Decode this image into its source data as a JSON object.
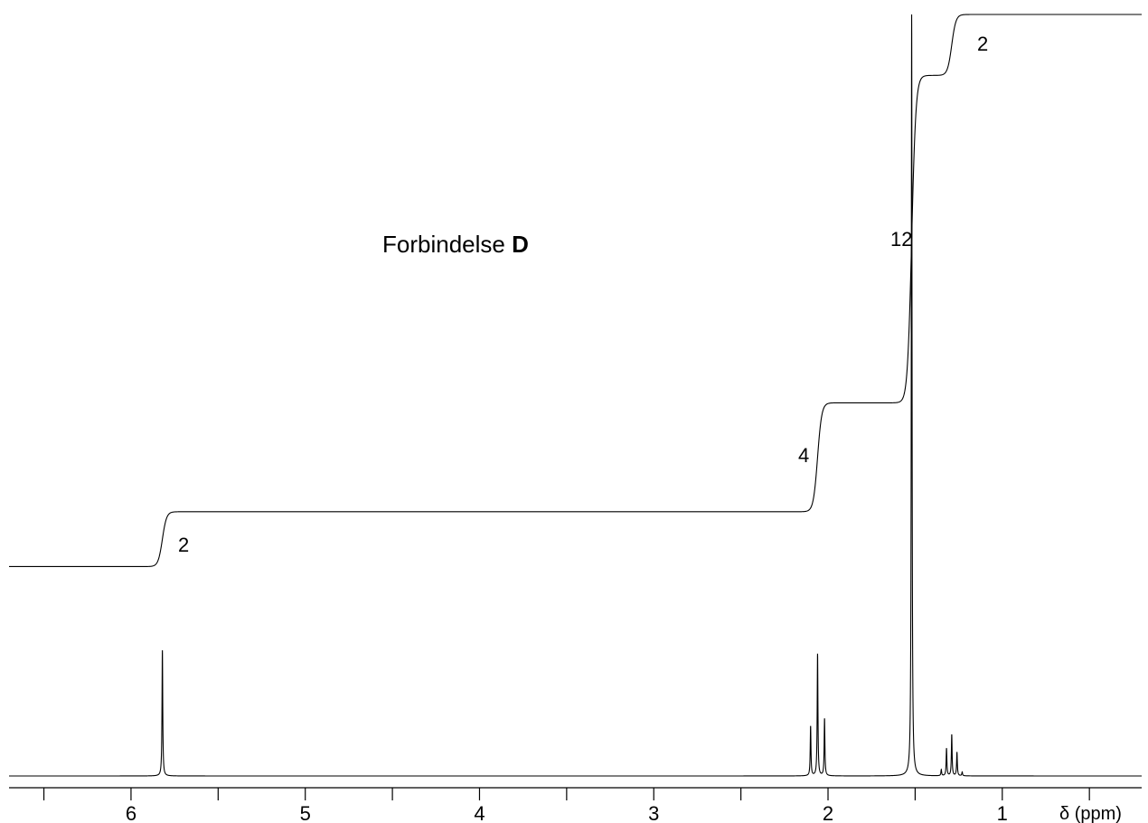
{
  "chart_data": {
    "type": "line",
    "title": "Forbindelse ",
    "title_bold": "D",
    "xlabel": "δ (ppm)",
    "ylabel": "",
    "x_reversed": true,
    "xlim": [
      6.7,
      0.2
    ],
    "major_ticks": [
      6,
      5,
      4,
      3,
      2,
      1
    ],
    "minor_ticks": [
      6.5,
      5.5,
      4.5,
      3.5,
      2.5,
      1.5,
      0.5
    ],
    "tick_labels": [
      "6",
      "5",
      "4",
      "3",
      "2",
      "1"
    ],
    "grid": false,
    "legend": "none",
    "series": [
      {
        "role": "spectrum",
        "peaks": [
          {
            "ppm": 5.82,
            "height": 0.165
          },
          {
            "ppm": 2.1,
            "height": 0.065
          },
          {
            "ppm": 2.06,
            "height": 0.16
          },
          {
            "ppm": 2.02,
            "height": 0.075
          },
          {
            "ppm": 1.52,
            "height": 1.0
          },
          {
            "ppm": 1.35,
            "height": 0.008
          },
          {
            "ppm": 1.32,
            "height": 0.036
          },
          {
            "ppm": 1.29,
            "height": 0.054
          },
          {
            "ppm": 1.26,
            "height": 0.031
          },
          {
            "ppm": 1.23,
            "height": 0.005
          }
        ]
      },
      {
        "role": "integral",
        "segments": [
          {
            "from": 6.7,
            "to": 5.82,
            "level": 0.275
          },
          {
            "from": 5.82,
            "to": 2.06,
            "level": 0.347
          },
          {
            "from": 2.06,
            "to": 1.52,
            "level": 0.49
          },
          {
            "from": 1.52,
            "to": 1.29,
            "level": 0.92
          },
          {
            "from": 1.29,
            "to": 0.2,
            "level": 1.0
          }
        ]
      }
    ],
    "annotations": [
      "2",
      "4",
      "12",
      "2"
    ]
  }
}
